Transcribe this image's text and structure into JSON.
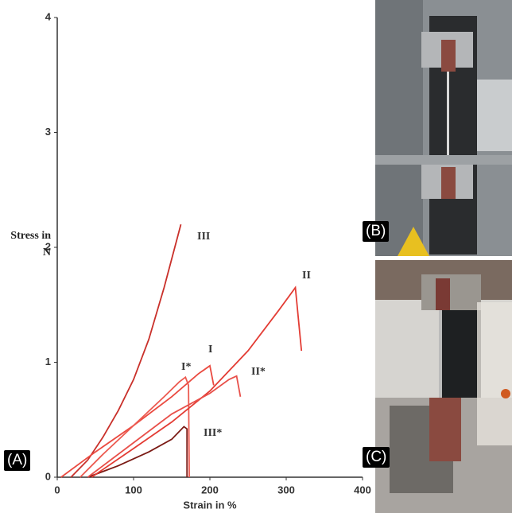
{
  "chart_data": {
    "type": "line",
    "xlabel": "Strain in %",
    "ylabel": "Stress in N",
    "xlim": [
      0,
      400
    ],
    "xticks": [
      0,
      100,
      200,
      300,
      400
    ],
    "ylim": [
      0,
      4
    ],
    "yticks": [
      0,
      1,
      2,
      3,
      4
    ],
    "grid": false,
    "series": [
      {
        "name": "III",
        "color": "#c9302a",
        "x": [
          18,
          40,
          60,
          80,
          100,
          120,
          140,
          162
        ],
        "values": [
          0,
          0.15,
          0.35,
          0.58,
          0.85,
          1.2,
          1.65,
          2.2
        ]
      },
      {
        "name": "III*",
        "color": "#7a1a14",
        "x": [
          40,
          80,
          120,
          150,
          166,
          170,
          170
        ],
        "values": [
          0,
          0.1,
          0.22,
          0.33,
          0.44,
          0.42,
          0
        ]
      },
      {
        "name": "I",
        "color": "#ea4a40",
        "x": [
          5,
          50,
          100,
          150,
          185,
          200,
          205
        ],
        "values": [
          0,
          0.22,
          0.45,
          0.7,
          0.9,
          0.97,
          0.8
        ]
      },
      {
        "name": "I*",
        "color": "#ec5a50",
        "x": [
          30,
          60,
          100,
          140,
          160,
          168,
          172,
          173
        ],
        "values": [
          0,
          0.2,
          0.45,
          0.7,
          0.83,
          0.87,
          0.8,
          0
        ]
      },
      {
        "name": "II",
        "color": "#e33c34",
        "x": [
          45,
          100,
          150,
          200,
          250,
          290,
          312,
          320
        ],
        "values": [
          0,
          0.25,
          0.48,
          0.75,
          1.1,
          1.45,
          1.65,
          1.1
        ]
      },
      {
        "name": "II*",
        "color": "#e8504a",
        "x": [
          40,
          100,
          150,
          200,
          225,
          235,
          240
        ],
        "values": [
          0,
          0.3,
          0.55,
          0.73,
          0.85,
          0.88,
          0.7
        ]
      }
    ]
  },
  "panels": [
    "(A)",
    "(B)",
    "(C)"
  ]
}
